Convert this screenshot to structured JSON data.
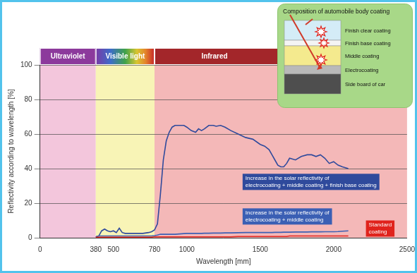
{
  "chart_data": {
    "type": "line",
    "x_label": "Wavelength [mm]",
    "y_label": "Reflectivity according to wavelength [%]",
    "xlim": [
      0,
      2500
    ],
    "xticks": [
      0,
      380,
      500,
      780,
      1000,
      1500,
      2000,
      2500
    ],
    "ylim": [
      0,
      100
    ],
    "yticks": [
      0,
      20,
      40,
      60,
      80,
      100
    ],
    "grid": true,
    "legend": false,
    "regions": [
      {
        "label": "Ultraviolet",
        "range": [
          0,
          380
        ],
        "color": "#f3c6dc"
      },
      {
        "label": "Visible light",
        "range": [
          380,
          780
        ],
        "color": "#f8f4b6"
      },
      {
        "label": "Infrared",
        "range": [
          780,
          2500
        ],
        "color": "#f4b8b8"
      }
    ],
    "inset": {
      "title": "Composition of automobile body coating",
      "layers": [
        "Finish clear coating",
        "Finish base coating",
        "Middle coating",
        "Electrocoating",
        "Side board of car"
      ]
    },
    "x": [
      380,
      400,
      420,
      440,
      460,
      480,
      500,
      520,
      540,
      560,
      580,
      600,
      650,
      700,
      740,
      760,
      780,
      800,
      820,
      840,
      860,
      880,
      900,
      920,
      950,
      980,
      1000,
      1030,
      1060,
      1080,
      1100,
      1120,
      1150,
      1180,
      1200,
      1230,
      1260,
      1300,
      1350,
      1400,
      1450,
      1500,
      1530,
      1560,
      1580,
      1600,
      1620,
      1640,
      1660,
      1680,
      1700,
      1740,
      1780,
      1820,
      1850,
      1880,
      1910,
      1940,
      1970,
      2000,
      2030,
      2060,
      2100
    ],
    "series": [
      {
        "name": "Increase in the solar reflectivity of electrocoating + middle coating + finish base coating",
        "color": "#2f4a9c",
        "values": [
          0.5,
          1,
          4,
          5,
          4,
          3.5,
          4,
          3,
          5.5,
          3,
          2.5,
          2.5,
          2.5,
          2.5,
          3,
          3.5,
          4.5,
          8,
          25,
          45,
          56,
          61,
          64,
          65,
          65,
          65,
          64,
          62,
          61,
          63,
          62,
          63,
          65,
          65,
          64.5,
          65,
          64,
          62,
          60,
          58,
          57,
          54,
          53,
          51,
          48,
          45,
          42,
          41,
          41,
          43,
          46,
          45,
          47,
          48,
          48,
          47,
          48,
          46,
          43,
          44,
          42,
          41,
          40
        ]
      },
      {
        "name": "Increase in the solar reflectivity of electrocoating + middle coating",
        "color": "#3b5fb4",
        "values": [
          0.5,
          1,
          1,
          1,
          1,
          1,
          1,
          1,
          1,
          1,
          1,
          1,
          1,
          1,
          1,
          1,
          1.2,
          1.5,
          2,
          2,
          2,
          2,
          2,
          2,
          2.2,
          2.4,
          2.5,
          2.5,
          2.5,
          2.5,
          2.5,
          2.6,
          2.6,
          2.7,
          2.7,
          2.7,
          2.8,
          2.8,
          2.9,
          3,
          3,
          3,
          3,
          3,
          3,
          3.1,
          3.1,
          3.1,
          3.2,
          3.2,
          3.2,
          3.3,
          3.3,
          3.3,
          3.4,
          3.4,
          3.4,
          3.5,
          3.5,
          3.5,
          3.6,
          3.8,
          4
        ]
      },
      {
        "name": "Standard coating",
        "color": "#e0231c",
        "values": [
          0.3,
          0.3,
          0.3,
          0.3,
          0.3,
          0.3,
          0.3,
          0.3,
          0.3,
          0.3,
          0.3,
          0.3,
          0.3,
          0.3,
          0.3,
          0.3,
          0.5,
          0.5,
          0.5,
          0.5,
          0.5,
          0.5,
          0.5,
          0.5,
          0.5,
          0.5,
          0.5,
          0.5,
          0.5,
          0.5,
          0.5,
          0.5,
          0.5,
          0.5,
          0.5,
          0.5,
          0.5,
          0.5,
          0.7,
          0.7,
          0.7,
          0.7,
          0.7,
          0.7,
          0.7,
          0.7,
          0.7,
          0.7,
          0.7,
          0.7,
          1,
          1,
          1,
          1,
          1,
          1,
          1,
          1,
          1,
          1,
          1,
          1,
          1
        ]
      }
    ]
  }
}
